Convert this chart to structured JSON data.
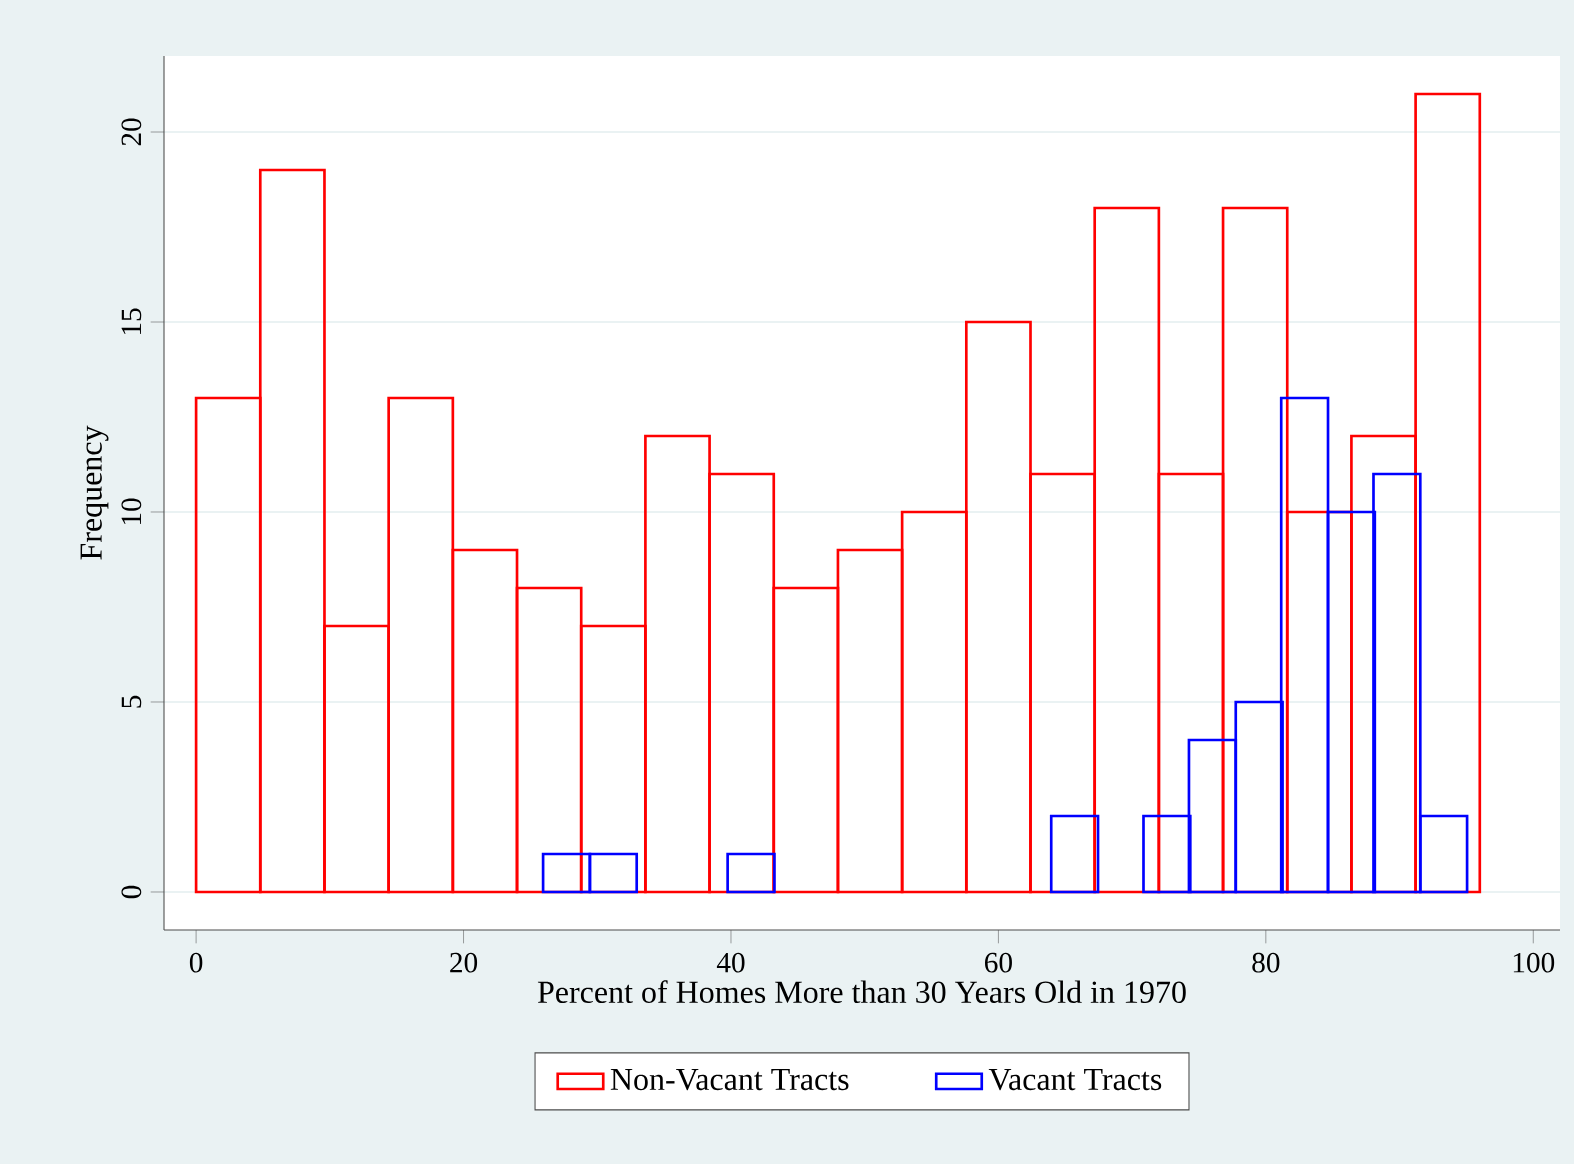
{
  "chart_data": {
    "type": "bar",
    "xlabel": "Percent of Homes More than 30 Years Old in 1970",
    "ylabel": "Frequency",
    "xlim": [
      -2.4,
      102
    ],
    "ylim": [
      -1,
      22
    ],
    "xticks": [
      0,
      20,
      40,
      60,
      80,
      100
    ],
    "yticks": [
      0,
      5,
      10,
      15,
      20
    ],
    "grid": "y",
    "legend": "bottom",
    "series": [
      {
        "name": "Non-Vacant Tracts",
        "color": "#ff0000",
        "x": [
          2.4,
          7.2,
          12,
          16.8,
          21.6,
          26.4,
          31.2,
          36,
          40.8,
          45.6,
          50.4,
          55.2,
          60,
          64.8,
          69.6,
          74.4,
          79.2,
          84,
          88.8,
          93.6
        ],
        "values": [
          13,
          19,
          7,
          13,
          9,
          8,
          7,
          12,
          11,
          8,
          9,
          10,
          15,
          11,
          18,
          11,
          18,
          10,
          12,
          21
        ]
      },
      {
        "name": "Vacant Tracts",
        "color": "#0000ff",
        "x": [
          27.7,
          31.2,
          34.6,
          38.1,
          41.5,
          45,
          48.4,
          51.9,
          55.3,
          58.8,
          62.2,
          65.7,
          69.1,
          72.6,
          76,
          79.5,
          82.9,
          86.4,
          89.8,
          93.3
        ],
        "values": [
          1,
          1,
          0,
          0,
          1,
          0,
          0,
          0,
          0,
          0,
          0,
          2,
          0,
          2,
          4,
          5,
          13,
          10,
          11,
          2
        ]
      }
    ]
  }
}
